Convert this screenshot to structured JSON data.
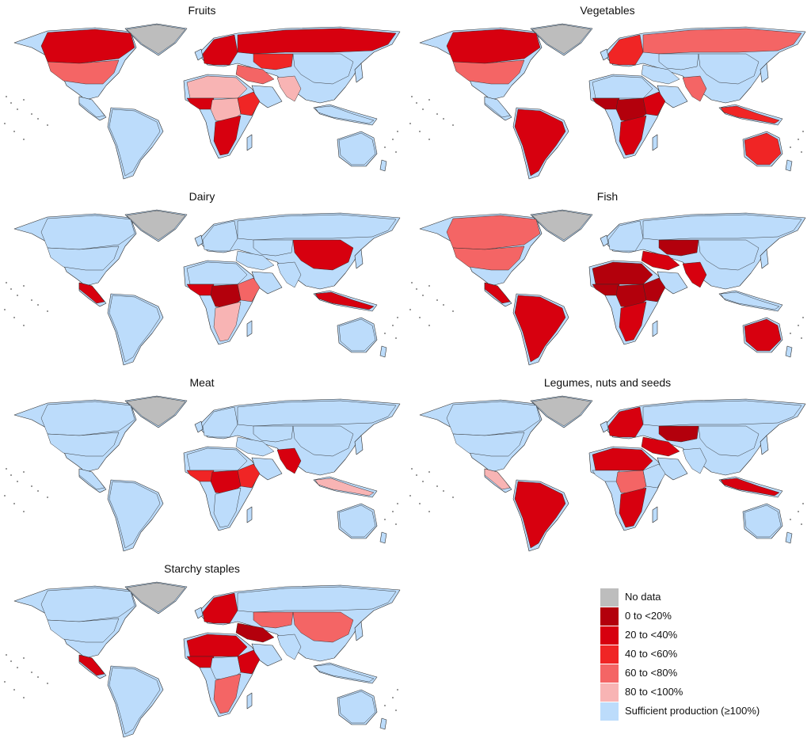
{
  "legend": {
    "items": [
      {
        "key": "nodata",
        "label": "No data",
        "color": "#bdbdbd"
      },
      {
        "key": "c1",
        "label": "0 to <20%",
        "color": "#b3000c"
      },
      {
        "key": "c2",
        "label": "20 to <40%",
        "color": "#d7000f"
      },
      {
        "key": "c3",
        "label": "40 to <60%",
        "color": "#f02525"
      },
      {
        "key": "c4",
        "label": "60 to <80%",
        "color": "#f46565"
      },
      {
        "key": "c5",
        "label": "80 to <100%",
        "color": "#f8b4b4"
      },
      {
        "key": "suff",
        "label": "Sufficient production (≥100%)",
        "color": "#bcdcfb"
      }
    ]
  },
  "panels": [
    {
      "id": "fruits",
      "title": "Fruits",
      "regions": {
        "greenland": "nodata",
        "north_america": "c2",
        "usa": "c4",
        "central_america": "suff",
        "south_america": "suff",
        "europe": "c2",
        "russia": "c2",
        "middle_east": "c4",
        "north_africa": "c5",
        "west_africa": "c2",
        "central_africa": "c5",
        "east_africa": "c3",
        "southern_africa": "c2",
        "south_asia": "c5",
        "central_asia": "c3",
        "east_asia": "suff",
        "southeast_asia": "suff",
        "australia": "suff"
      }
    },
    {
      "id": "vegetables",
      "title": "Vegetables",
      "regions": {
        "greenland": "nodata",
        "north_america": "c2",
        "usa": "c4",
        "central_america": "suff",
        "south_america": "c2",
        "europe": "c3",
        "russia": "c4",
        "middle_east": "suff",
        "north_africa": "suff",
        "west_africa": "c1",
        "central_africa": "c1",
        "east_africa": "c2",
        "southern_africa": "c2",
        "south_asia": "c4",
        "central_asia": "suff",
        "east_asia": "suff",
        "southeast_asia": "c3",
        "australia": "c3"
      }
    },
    {
      "id": "dairy",
      "title": "Dairy",
      "regions": {
        "greenland": "nodata",
        "north_america": "suff",
        "usa": "suff",
        "central_america": "c2",
        "south_america": "suff",
        "europe": "suff",
        "russia": "suff",
        "middle_east": "suff",
        "north_africa": "suff",
        "west_africa": "c2",
        "central_africa": "c1",
        "east_africa": "c4",
        "southern_africa": "c5",
        "south_asia": "suff",
        "central_asia": "suff",
        "east_asia": "c2",
        "southeast_asia": "c2",
        "australia": "suff"
      }
    },
    {
      "id": "fish",
      "title": "Fish",
      "regions": {
        "greenland": "nodata",
        "north_america": "c4",
        "usa": "c4",
        "central_america": "c2",
        "south_america": "c2",
        "europe": "suff",
        "russia": "suff",
        "middle_east": "c2",
        "north_africa": "c1",
        "west_africa": "c1",
        "central_africa": "c1",
        "east_africa": "c1",
        "southern_africa": "c2",
        "south_asia": "c2",
        "central_asia": "c1",
        "east_asia": "suff",
        "southeast_asia": "suff",
        "australia": "c2"
      }
    },
    {
      "id": "meat",
      "title": "Meat",
      "regions": {
        "greenland": "nodata",
        "north_america": "suff",
        "usa": "suff",
        "central_america": "suff",
        "south_america": "suff",
        "europe": "suff",
        "russia": "suff",
        "middle_east": "suff",
        "north_africa": "suff",
        "west_africa": "c3",
        "central_africa": "c2",
        "east_africa": "c3",
        "southern_africa": "suff",
        "south_asia": "c2",
        "central_asia": "suff",
        "east_asia": "suff",
        "southeast_asia": "c5",
        "australia": "suff"
      }
    },
    {
      "id": "legumes",
      "title": "Legumes, nuts and seeds",
      "regions": {
        "greenland": "nodata",
        "north_america": "suff",
        "usa": "suff",
        "central_america": "c5",
        "south_america": "c2",
        "europe": "c2",
        "russia": "suff",
        "middle_east": "c2",
        "north_africa": "c2",
        "west_africa": "suff",
        "central_africa": "c4",
        "east_africa": "suff",
        "southern_africa": "c2",
        "south_asia": "suff",
        "central_asia": "c1",
        "east_asia": "suff",
        "southeast_asia": "c2",
        "australia": "suff"
      }
    },
    {
      "id": "starchy",
      "title": "Starchy staples",
      "regions": {
        "greenland": "nodata",
        "north_america": "suff",
        "usa": "suff",
        "central_america": "c2",
        "south_america": "suff",
        "europe": "c2",
        "russia": "suff",
        "middle_east": "c1",
        "north_africa": "c2",
        "west_africa": "c2",
        "central_africa": "suff",
        "east_africa": "c2",
        "southern_africa": "c4",
        "south_asia": "suff",
        "central_asia": "c4",
        "east_asia": "c4",
        "southeast_asia": "suff",
        "australia": "suff"
      }
    }
  ]
}
